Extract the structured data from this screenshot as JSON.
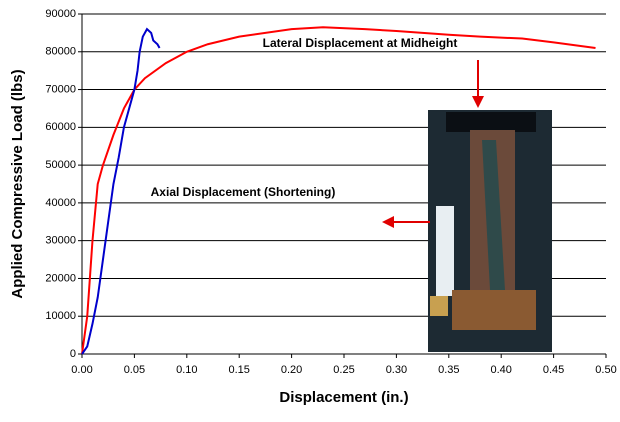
{
  "chart_data": {
    "type": "line",
    "x_label": "Displacement (in.)",
    "y_label": "Applied Compressive Load (lbs)",
    "annotations": [
      "Lateral Displacement at Midheight",
      "Axial Displacement (Shortening)"
    ],
    "xlim": [
      0,
      0.5
    ],
    "xticks": [
      {
        "value": 0,
        "label": "0.00"
      },
      {
        "value": 0.05,
        "label": "0.05"
      },
      {
        "value": 0.1,
        "label": "0.10"
      },
      {
        "value": 0.15,
        "label": "0.15"
      },
      {
        "value": 0.2,
        "label": "0.20"
      },
      {
        "value": 0.25,
        "label": "0.25"
      },
      {
        "value": 0.3,
        "label": "0.30"
      },
      {
        "value": 0.35,
        "label": "0.35"
      },
      {
        "value": 0.4,
        "label": "0.40"
      },
      {
        "value": 0.45,
        "label": "0.45"
      },
      {
        "value": 0.5,
        "label": "0.50"
      }
    ],
    "ylim": [
      0,
      90000
    ],
    "yticks": [
      0,
      10000,
      20000,
      30000,
      40000,
      50000,
      60000,
      70000,
      80000,
      90000
    ],
    "grid": true,
    "series": [
      {
        "color": "#ff0000",
        "x": [
          0,
          0.005,
          0.01,
          0.015,
          0.02,
          0.03,
          0.04,
          0.05,
          0.06,
          0.08,
          0.1,
          0.12,
          0.15,
          0.2,
          0.23,
          0.27,
          0.3,
          0.35,
          0.38,
          0.42,
          0.45,
          0.49
        ],
        "values": [
          0,
          10000,
          30000,
          45000,
          50000,
          58000,
          65000,
          70000,
          73000,
          77000,
          80000,
          82000,
          84000,
          86000,
          86500,
          86000,
          85500,
          84500,
          84000,
          83500,
          82500,
          81000
        ]
      },
      {
        "color": "#0000cc",
        "x": [
          0,
          0.005,
          0.01,
          0.015,
          0.02,
          0.025,
          0.03,
          0.035,
          0.04,
          0.045,
          0.05,
          0.053,
          0.055,
          0.058,
          0.062,
          0.066,
          0.068,
          0.072,
          0.074
        ],
        "values": [
          0,
          2000,
          8000,
          15000,
          25000,
          35000,
          45000,
          52000,
          60000,
          65000,
          70000,
          75000,
          80000,
          84000,
          86000,
          85000,
          83000,
          82000,
          81000
        ]
      }
    ]
  }
}
